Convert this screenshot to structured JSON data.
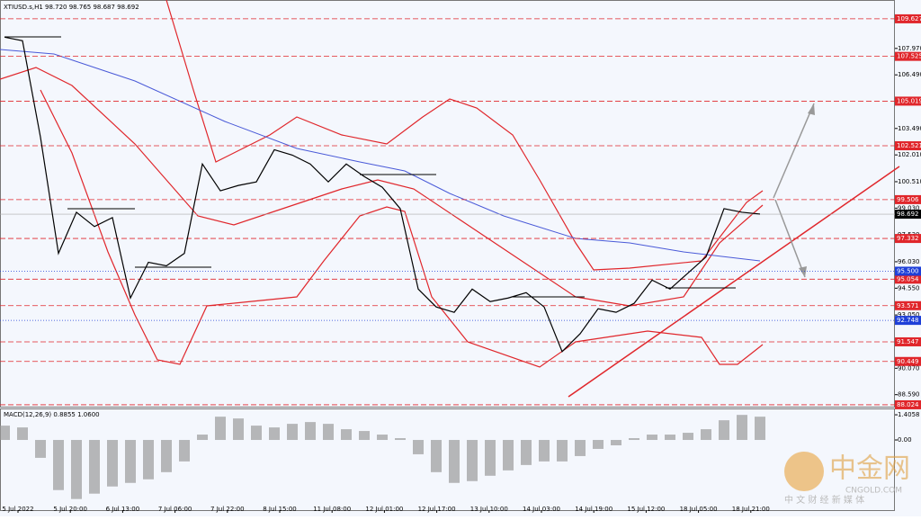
{
  "chart_data": [
    {
      "type": "line",
      "title": "XTIUSD.s,H1  98.720 98.765 98.687 98.692",
      "xtick_labels": [
        "5 Jul 2022",
        "5 Jul 20:00",
        "6 Jul 13:00",
        "7 Jul 06:00",
        "7 Jul 22:00",
        "8 Jul 15:00",
        "11 Jul 08:00",
        "12 Jul 01:00",
        "12 Jul 17:00",
        "13 Jul 10:00",
        "14 Jul 03:00",
        "14 Jul 19:00",
        "15 Jul 12:00",
        "18 Jul 05:00",
        "18 Jul 21:00"
      ],
      "values": [
        108.6,
        108.4,
        103.0,
        96.5,
        98.8,
        98.0,
        98.5,
        94.0,
        96.0,
        95.8,
        96.5,
        101.5,
        100.0,
        100.3,
        100.5,
        102.3,
        102.0,
        101.5,
        100.5,
        101.5,
        100.8,
        100.2,
        99.0,
        94.5,
        93.5,
        93.2,
        94.5,
        93.8,
        94.0,
        94.3,
        93.5,
        91.0,
        92.0,
        93.4,
        93.2,
        93.7,
        95.0,
        94.5,
        95.4,
        96.3,
        99.0,
        98.8,
        98.7
      ],
      "color": "#000000",
      "ylim": [
        87.92,
        110.68
      ],
      "yticks": [
        {
          "value": 107.97,
          "label": "107.970"
        },
        {
          "value": 106.49,
          "label": "106.490"
        },
        {
          "value": 103.49,
          "label": "103.490"
        },
        {
          "value": 102.01,
          "label": "102.010"
        },
        {
          "value": 100.51,
          "label": "100.510"
        },
        {
          "value": 99.03,
          "label": "99.030"
        },
        {
          "value": 97.53,
          "label": "97.530"
        },
        {
          "value": 96.03,
          "label": "96.030"
        },
        {
          "value": 94.55,
          "label": "94.550"
        },
        {
          "value": 93.05,
          "label": "93.050"
        },
        {
          "value": 90.07,
          "label": "90.070"
        },
        {
          "value": 88.59,
          "label": "88.590"
        }
      ],
      "red_levels": [
        109.627,
        107.525,
        105.019,
        102.521,
        99.506,
        97.332,
        95.054,
        93.571,
        91.547,
        90.449,
        88.024
      ],
      "red_color": "#e0262b",
      "blue_levels": [
        {
          "value": 95.5,
          "label": "95.500"
        },
        92.748
      ],
      "blue_color": "#1e3fd8",
      "current_price": 98.692
    },
    {
      "type": "bar",
      "title": "MACD(12,26,9) 0.8855 1.0600",
      "values": [
        0.8,
        0.7,
        -1.0,
        -2.8,
        -3.3,
        -3.0,
        -2.6,
        -2.4,
        -2.2,
        -1.8,
        -1.2,
        0.3,
        1.3,
        1.2,
        0.8,
        0.7,
        0.9,
        1.0,
        0.9,
        0.6,
        0.5,
        0.3,
        0.1,
        -0.8,
        -1.8,
        -2.4,
        -2.3,
        -2.0,
        -1.7,
        -1.4,
        -1.2,
        -1.2,
        -0.9,
        -0.5,
        -0.3,
        0.1,
        0.3,
        0.3,
        0.4,
        0.6,
        1.1,
        1.4,
        1.3
      ],
      "color": "#9a9a9a",
      "ylim": [
        -3.97,
        1.71
      ],
      "yticks": [
        1.4058,
        {
          "value": 0,
          "label": "0.00"
        }
      ]
    }
  ],
  "watermark": {
    "logo": "中金网",
    "site": "CNGOLD.COM",
    "slogan": "中 文 财 经 新 媒 体"
  }
}
